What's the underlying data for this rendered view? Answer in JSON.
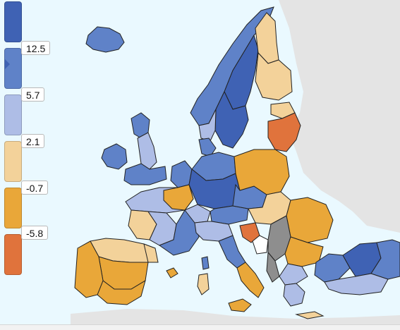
{
  "legend": {
    "labels": [
      "12.5",
      "5.7",
      "2.1",
      "-0.7",
      "-5.8"
    ],
    "class_colors": [
      "#3f62b4",
      "#5f82c8",
      "#aebde6",
      "#f3d29a",
      "#e9a739",
      "#e0733c"
    ],
    "selected_class": 1
  },
  "map": {
    "sea_color": "#eaf9ff",
    "land_outside_color": "#e4e4e4",
    "no_data_color": "#8e8e8e",
    "border_color": "#222222"
  }
}
